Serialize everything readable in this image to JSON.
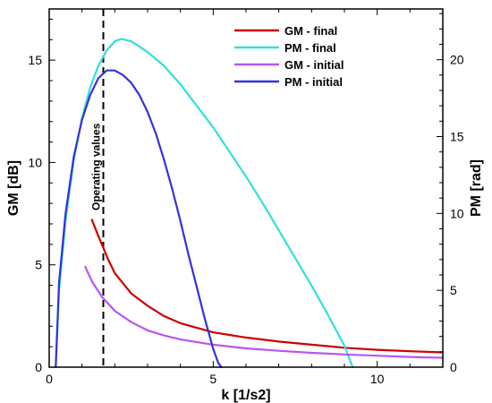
{
  "chart_data": {
    "type": "line",
    "xlabel": "k [1/s2]",
    "ylabel": "GM [dB]",
    "y2label": "PM [rad]",
    "xlim": [
      0,
      12
    ],
    "ylim": [
      0,
      17.5
    ],
    "y2lim": [
      0,
      23.3
    ],
    "x_ticks": [
      0,
      5,
      10
    ],
    "y_ticks": [
      0,
      5,
      10,
      15
    ],
    "y2_ticks": [
      0,
      5,
      10,
      15,
      20
    ],
    "x_minor_step": 1,
    "y_minor_step": 1,
    "y2_minor_step": 1,
    "grid": false,
    "legend_position": "top-right",
    "annotation": {
      "text": "Operating values",
      "x": 1.65,
      "style": "dashed vertical line"
    },
    "series": [
      {
        "name": "GM - final",
        "axis": "left",
        "color": "#cc0000",
        "x": [
          1.3,
          1.5,
          1.8,
          2.0,
          2.5,
          3.0,
          3.5,
          4.0,
          5.0,
          6.0,
          7.0,
          8.0,
          9.0,
          10.0,
          11.0,
          12.0
        ],
        "y": [
          7.2,
          6.4,
          5.25,
          4.6,
          3.6,
          3.0,
          2.5,
          2.15,
          1.7,
          1.45,
          1.25,
          1.1,
          0.95,
          0.85,
          0.78,
          0.72
        ]
      },
      {
        "name": "PM - final",
        "axis": "right",
        "color": "#33dddd",
        "x": [
          0.2,
          0.3,
          0.5,
          0.75,
          1.0,
          1.25,
          1.5,
          1.75,
          2.0,
          2.2,
          2.5,
          3.0,
          3.5,
          4.0,
          4.5,
          5.0,
          5.5,
          6.0,
          6.5,
          7.0,
          7.5,
          8.0,
          8.5,
          9.0,
          9.25
        ],
        "y": [
          0,
          5.0,
          9.5,
          13.5,
          16.2,
          18.2,
          19.6,
          20.6,
          21.2,
          21.35,
          21.2,
          20.5,
          19.6,
          18.4,
          17.0,
          15.6,
          14.0,
          12.4,
          10.7,
          8.9,
          7.1,
          5.3,
          3.4,
          1.4,
          0
        ]
      },
      {
        "name": "GM - initial",
        "axis": "left",
        "color": "#bb55ee",
        "x": [
          1.1,
          1.3,
          1.6,
          2.0,
          2.5,
          3.0,
          3.5,
          4.0,
          5.0,
          6.0,
          7.0,
          8.0,
          9.0,
          10.0,
          11.0,
          12.0
        ],
        "y": [
          4.9,
          4.2,
          3.45,
          2.75,
          2.2,
          1.8,
          1.55,
          1.35,
          1.1,
          0.92,
          0.8,
          0.7,
          0.62,
          0.56,
          0.5,
          0.46
        ]
      },
      {
        "name": "PM - initial",
        "axis": "right",
        "color": "#3333dd",
        "x": [
          0.2,
          0.3,
          0.5,
          0.75,
          1.0,
          1.25,
          1.5,
          1.75,
          2.0,
          2.25,
          2.5,
          2.75,
          3.0,
          3.25,
          3.5,
          3.75,
          4.0,
          4.25,
          4.5,
          4.75,
          5.0,
          5.15,
          5.25
        ],
        "y": [
          0,
          5.5,
          10.0,
          13.7,
          16.1,
          17.7,
          18.8,
          19.3,
          19.3,
          19.0,
          18.5,
          17.7,
          16.6,
          15.2,
          13.5,
          11.6,
          9.5,
          7.3,
          5.2,
          3.1,
          1.2,
          0.3,
          0
        ]
      }
    ]
  }
}
